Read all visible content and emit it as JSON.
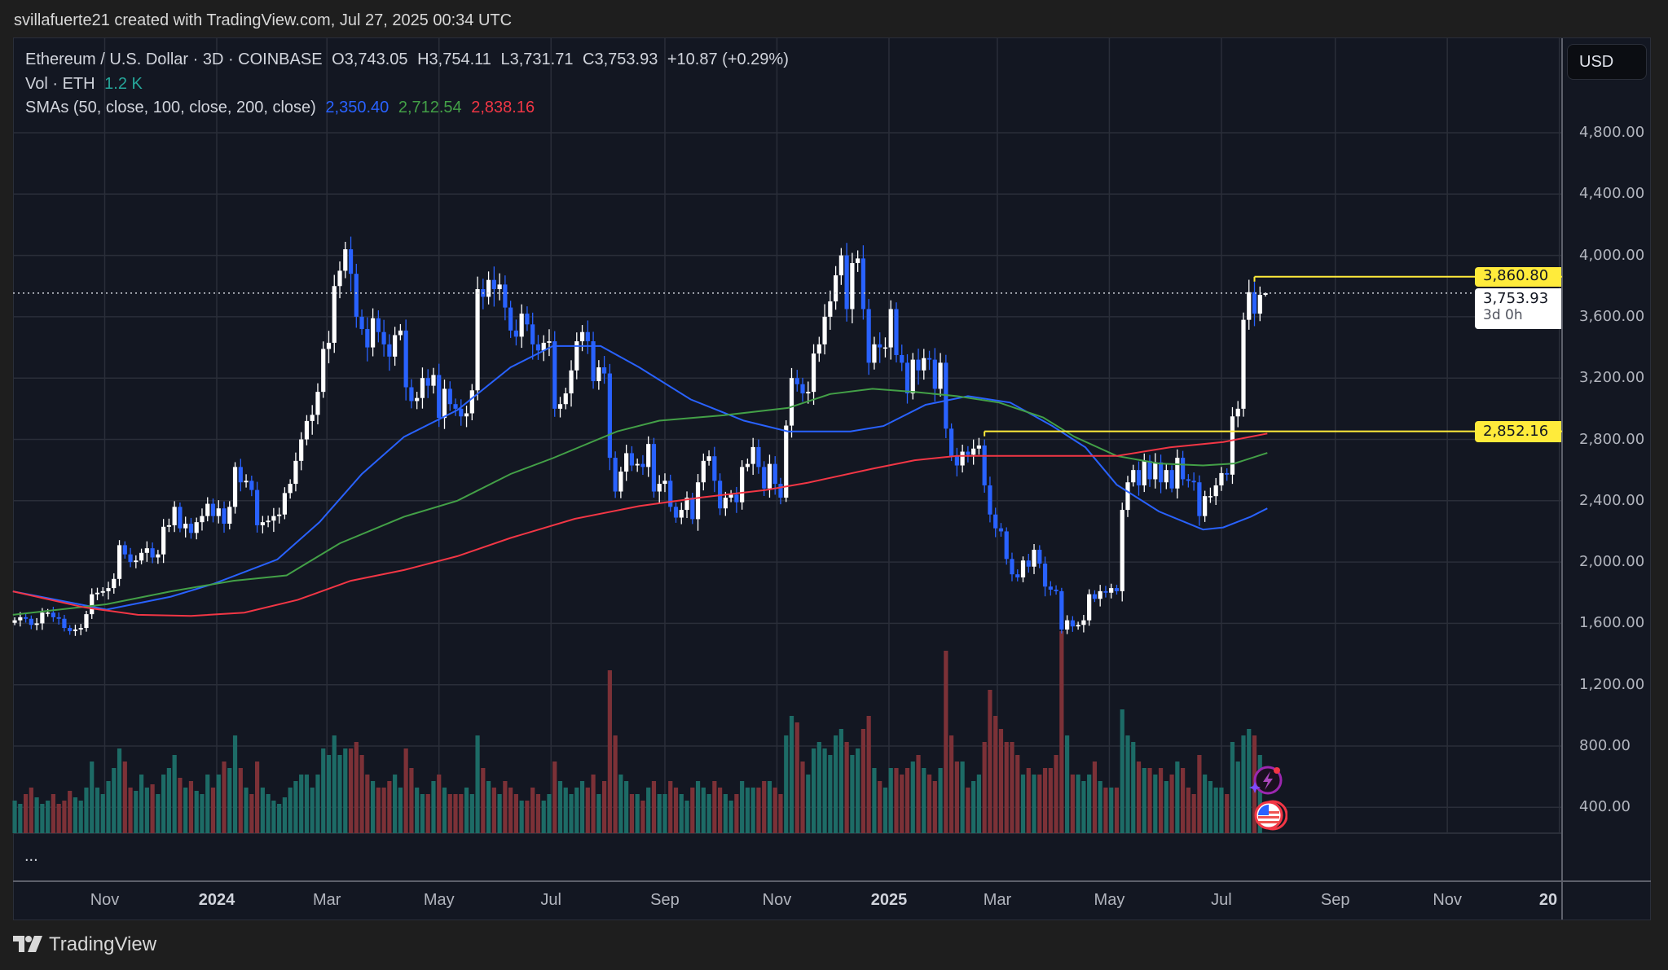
{
  "header": {
    "attribution": "svillafuerte21 created with TradingView.com, Jul 27, 2025 00:34 UTC"
  },
  "legend": {
    "symbol": "Ethereum / U.S. Dollar · 3D · COINBASE",
    "open": "O3,743.05",
    "high": "H3,754.11",
    "low": "L3,731.71",
    "close": "C3,753.93",
    "change": "+10.87 (+0.29%)",
    "vol_label": "Vol · ETH",
    "vol_value": "1.2 K",
    "sma_label": "SMAs (50, close, 100, close, 200, close)",
    "sma50": "2,350.40",
    "sma100": "2,712.54",
    "sma200": "2,838.16"
  },
  "price_axis": {
    "currency": "USD"
  },
  "price_labels": {
    "resistance": "3,860.80",
    "support": "2,852.16",
    "last_price": "3,753.93",
    "countdown": "3d 0h"
  },
  "more_label": "...",
  "footer": {
    "brand": "TradingView"
  },
  "colors": {
    "up": "#ffffff",
    "down": "#2962ff",
    "vol_up": "#1d6b66",
    "vol_down": "#7c3137",
    "sma50": "#2962ff",
    "sma100": "#43a047",
    "sma200": "#f23645",
    "level": "#ffeb3b",
    "grid": "#2a2e39",
    "background": "#131722"
  },
  "icons": [
    "lightning-event-icon",
    "us-flag-event-icon"
  ],
  "chart_data": {
    "type": "candlestick",
    "interval": "3D",
    "ylim": [
      200,
      5100
    ],
    "xlim": [
      "2023-09-11",
      "2026-01-02"
    ],
    "grid": true,
    "y_ticks": [
      {
        "value": 4800,
        "label": "4,800.00"
      },
      {
        "value": 4400,
        "label": "4,400.00"
      },
      {
        "value": 4000,
        "label": "4,000.00"
      },
      {
        "value": 3600,
        "label": "3,600.00"
      },
      {
        "value": 3200,
        "label": "3,200.00"
      },
      {
        "value": 2800,
        "label": "2,800.00"
      },
      {
        "value": 2400,
        "label": "2,400.00"
      },
      {
        "value": 2000,
        "label": "2,000.00"
      },
      {
        "value": 1600,
        "label": "1,600.00"
      },
      {
        "value": 1200,
        "label": "1,200.00"
      },
      {
        "value": 800,
        "label": "800.00"
      },
      {
        "value": 400,
        "label": "400.00"
      }
    ],
    "x_ticks": [
      {
        "date": "2023-11-01",
        "label": "Nov"
      },
      {
        "date": "2024-01-01",
        "label": "2024",
        "bold": true
      },
      {
        "date": "2024-03-01",
        "label": "Mar"
      },
      {
        "date": "2024-05-01",
        "label": "May"
      },
      {
        "date": "2024-07-01",
        "label": "Jul"
      },
      {
        "date": "2024-09-01",
        "label": "Sep"
      },
      {
        "date": "2024-11-01",
        "label": "Nov"
      },
      {
        "date": "2025-01-01",
        "label": "2025",
        "bold": true
      },
      {
        "date": "2025-03-01",
        "label": "Mar"
      },
      {
        "date": "2025-05-01",
        "label": "May"
      },
      {
        "date": "2025-07-01",
        "label": "Jul"
      },
      {
        "date": "2025-09-01",
        "label": "Sep"
      },
      {
        "date": "2025-11-01",
        "label": "Nov"
      },
      {
        "date": "2026-01-01",
        "label": "20",
        "bold": true
      }
    ],
    "candles": {
      "start": "2023-09-13",
      "close": [
        1620,
        1640,
        1630,
        1590,
        1600,
        1670,
        1670,
        1640,
        1630,
        1570,
        1550,
        1560,
        1570,
        1660,
        1790,
        1800,
        1810,
        1830,
        1890,
        2110,
        2050,
        2000,
        2010,
        2060,
        2090,
        2030,
        2050,
        2230,
        2240,
        2360,
        2220,
        2250,
        2190,
        2260,
        2300,
        2380,
        2300,
        2350,
        2250,
        2360,
        2620,
        2520,
        2530,
        2470,
        2240,
        2260,
        2270,
        2300,
        2310,
        2450,
        2510,
        2660,
        2800,
        2920,
        2960,
        3110,
        3390,
        3430,
        3800,
        3900,
        4040,
        3880,
        3600,
        3520,
        3400,
        3590,
        3500,
        3420,
        3340,
        3480,
        3510,
        3140,
        3050,
        3070,
        3200,
        3150,
        3220,
        2940,
        3130,
        3030,
        3000,
        2950,
        2970,
        3120,
        3780,
        3730,
        3840,
        3780,
        3810,
        3660,
        3510,
        3470,
        3620,
        3550,
        3420,
        3380,
        3430,
        3440,
        3000,
        3030,
        3100,
        3250,
        3440,
        3500,
        3440,
        3180,
        3270,
        3230,
        2680,
        2460,
        2590,
        2710,
        2630,
        2640,
        2620,
        2770,
        2460,
        2510,
        2530,
        2360,
        2290,
        2340,
        2420,
        2280,
        2520,
        2660,
        2690,
        2530,
        2350,
        2420,
        2440,
        2390,
        2620,
        2640,
        2750,
        2620,
        2480,
        2640,
        2510,
        2420,
        2890,
        3200,
        3160,
        3100,
        3110,
        3360,
        3420,
        3600,
        3700,
        3870,
        4000,
        3650,
        3950,
        3980,
        3650,
        3300,
        3420,
        3400,
        3400,
        3650,
        3350,
        3300,
        3100,
        3320,
        3250,
        3330,
        3320,
        3130,
        3300,
        2870,
        2690,
        2630,
        2720,
        2700,
        2740,
        2760,
        2500,
        2310,
        2220,
        2200,
        2020,
        1920,
        1900,
        2010,
        1970,
        2080,
        1990,
        1840,
        1820,
        1810,
        1560,
        1620,
        1580,
        1590,
        1620,
        1790,
        1760,
        1810,
        1800,
        1830,
        1810,
        2340,
        2520,
        2600,
        2500,
        2660,
        2540,
        2650,
        2520,
        2600,
        2480,
        2680,
        2540,
        2530,
        2520,
        2300,
        2430,
        2430,
        2500,
        2580,
        2570,
        2950,
        3000,
        3580,
        3760,
        3620,
        3743.05,
        3753.93
      ],
      "last": {
        "open": 3743.05,
        "high": 3754.11,
        "low": 3731.71,
        "close": 3753.93
      },
      "volume_k_eth": [
        500,
        450,
        600,
        700,
        550,
        450,
        500,
        600,
        450,
        500,
        650,
        550,
        500,
        700,
        1100,
        700,
        600,
        800,
        1000,
        1300,
        1100,
        700,
        650,
        900,
        700,
        750,
        600,
        900,
        1000,
        1200,
        850,
        700,
        800,
        650,
        600,
        900,
        700,
        900,
        1100,
        1000,
        1500,
        1000,
        700,
        600,
        1100,
        700,
        600,
        500,
        450,
        550,
        700,
        800,
        900,
        900,
        700,
        900,
        1300,
        1200,
        1500,
        1200,
        1300,
        1300,
        1400,
        1200,
        900,
        800,
        700,
        700,
        800,
        900,
        700,
        1300,
        1000,
        700,
        600,
        600,
        800,
        900,
        700,
        600,
        600,
        600,
        700,
        600,
        1500,
        1000,
        800,
        700,
        600,
        800,
        700,
        600,
        500,
        500,
        700,
        600,
        500,
        600,
        1100,
        800,
        700,
        600,
        700,
        800,
        700,
        900,
        600,
        800,
        2500,
        1500,
        900,
        800,
        600,
        600,
        500,
        700,
        800,
        600,
        600,
        800,
        700,
        600,
        500,
        700,
        800,
        700,
        600,
        800,
        700,
        600,
        500,
        600,
        800,
        700,
        700,
        700,
        800,
        800,
        700,
        600,
        1500,
        1800,
        1700,
        1100,
        900,
        1300,
        1400,
        1300,
        1200,
        1500,
        1600,
        1400,
        1200,
        1300,
        1600,
        1800,
        1000,
        800,
        700,
        1000,
        1000,
        900,
        1000,
        1100,
        1200,
        1000,
        900,
        800,
        1000,
        2800,
        1500,
        1100,
        1100,
        700,
        800,
        900,
        1400,
        2200,
        1800,
        1600,
        1400,
        1400,
        1200,
        900,
        1000,
        900,
        900,
        1000,
        1000,
        1200,
        3100,
        1500,
        900,
        900,
        800,
        900,
        1100,
        800,
        700,
        700,
        700,
        1900,
        1500,
        1400,
        1100,
        1000,
        1000,
        900,
        1000,
        800,
        900,
        1100,
        1000,
        700,
        600,
        1200,
        900,
        800,
        700,
        700,
        600,
        1400,
        1100,
        1500,
        1600,
        1500,
        1200,
        1.2
      ]
    },
    "series": [
      {
        "name": "SMA 50",
        "color": "#2962ff",
        "points": [
          [
            "2023-09-12",
            1809
          ],
          [
            "2023-11-02",
            1690
          ],
          [
            "2023-12-07",
            1774
          ],
          [
            "2023-12-30",
            1857
          ],
          [
            "2024-02-03",
            2017
          ],
          [
            "2024-02-26",
            2261
          ],
          [
            "2024-03-20",
            2574
          ],
          [
            "2024-04-12",
            2817
          ],
          [
            "2024-05-11",
            2991
          ],
          [
            "2024-06-09",
            3270
          ],
          [
            "2024-07-02",
            3409
          ],
          [
            "2024-07-28",
            3409
          ],
          [
            "2024-08-18",
            3270
          ],
          [
            "2024-09-15",
            3061
          ],
          [
            "2024-10-14",
            2922
          ],
          [
            "2024-11-07",
            2852
          ],
          [
            "2024-12-11",
            2852
          ],
          [
            "2024-12-29",
            2887
          ],
          [
            "2025-01-21",
            3026
          ],
          [
            "2025-02-13",
            3082
          ],
          [
            "2025-03-08",
            3040
          ],
          [
            "2025-03-31",
            2887
          ],
          [
            "2025-04-18",
            2748
          ],
          [
            "2025-05-05",
            2504
          ],
          [
            "2025-05-28",
            2330
          ],
          [
            "2025-06-21",
            2212
          ],
          [
            "2025-07-02",
            2226
          ],
          [
            "2025-07-17",
            2296
          ],
          [
            "2025-07-26",
            2350
          ]
        ]
      },
      {
        "name": "SMA 100",
        "color": "#43a047",
        "points": [
          [
            "2023-09-12",
            1656
          ],
          [
            "2023-11-02",
            1725
          ],
          [
            "2023-12-07",
            1809
          ],
          [
            "2024-01-10",
            1878
          ],
          [
            "2024-02-08",
            1913
          ],
          [
            "2024-03-08",
            2122
          ],
          [
            "2024-04-12",
            2296
          ],
          [
            "2024-05-11",
            2400
          ],
          [
            "2024-06-09",
            2574
          ],
          [
            "2024-07-02",
            2678
          ],
          [
            "2024-08-06",
            2852
          ],
          [
            "2024-08-29",
            2922
          ],
          [
            "2024-10-03",
            2957
          ],
          [
            "2024-11-07",
            3005
          ],
          [
            "2024-11-30",
            3096
          ],
          [
            "2024-12-23",
            3130
          ],
          [
            "2025-01-15",
            3109
          ],
          [
            "2025-02-07",
            3082
          ],
          [
            "2025-03-02",
            3040
          ],
          [
            "2025-03-26",
            2943
          ],
          [
            "2025-04-12",
            2817
          ],
          [
            "2025-05-05",
            2692
          ],
          [
            "2025-05-28",
            2643
          ],
          [
            "2025-06-21",
            2630
          ],
          [
            "2025-07-08",
            2643
          ],
          [
            "2025-07-26",
            2712
          ]
        ]
      },
      {
        "name": "SMA 200",
        "color": "#f23645",
        "points": [
          [
            "2023-09-12",
            1809
          ],
          [
            "2023-10-21",
            1704
          ],
          [
            "2023-11-19",
            1656
          ],
          [
            "2023-12-18",
            1649
          ],
          [
            "2024-01-16",
            1670
          ],
          [
            "2024-02-14",
            1753
          ],
          [
            "2024-03-14",
            1878
          ],
          [
            "2024-04-12",
            1948
          ],
          [
            "2024-05-11",
            2038
          ],
          [
            "2024-06-09",
            2157
          ],
          [
            "2024-07-14",
            2282
          ],
          [
            "2024-08-18",
            2365
          ],
          [
            "2024-09-21",
            2421
          ],
          [
            "2024-10-26",
            2470
          ],
          [
            "2024-11-18",
            2518
          ],
          [
            "2024-12-23",
            2609
          ],
          [
            "2025-01-15",
            2664
          ],
          [
            "2025-02-07",
            2692
          ],
          [
            "2025-03-02",
            2692
          ],
          [
            "2025-04-06",
            2692
          ],
          [
            "2025-05-05",
            2692
          ],
          [
            "2025-06-03",
            2748
          ],
          [
            "2025-07-02",
            2783
          ],
          [
            "2025-07-26",
            2838
          ]
        ]
      }
    ],
    "levels": [
      {
        "value": 3860.8,
        "from": "2025-07-19",
        "color": "#ffeb3b"
      },
      {
        "value": 2852.16,
        "from": "2025-02-22",
        "color": "#ffeb3b"
      }
    ],
    "last_price": 3753.93
  }
}
